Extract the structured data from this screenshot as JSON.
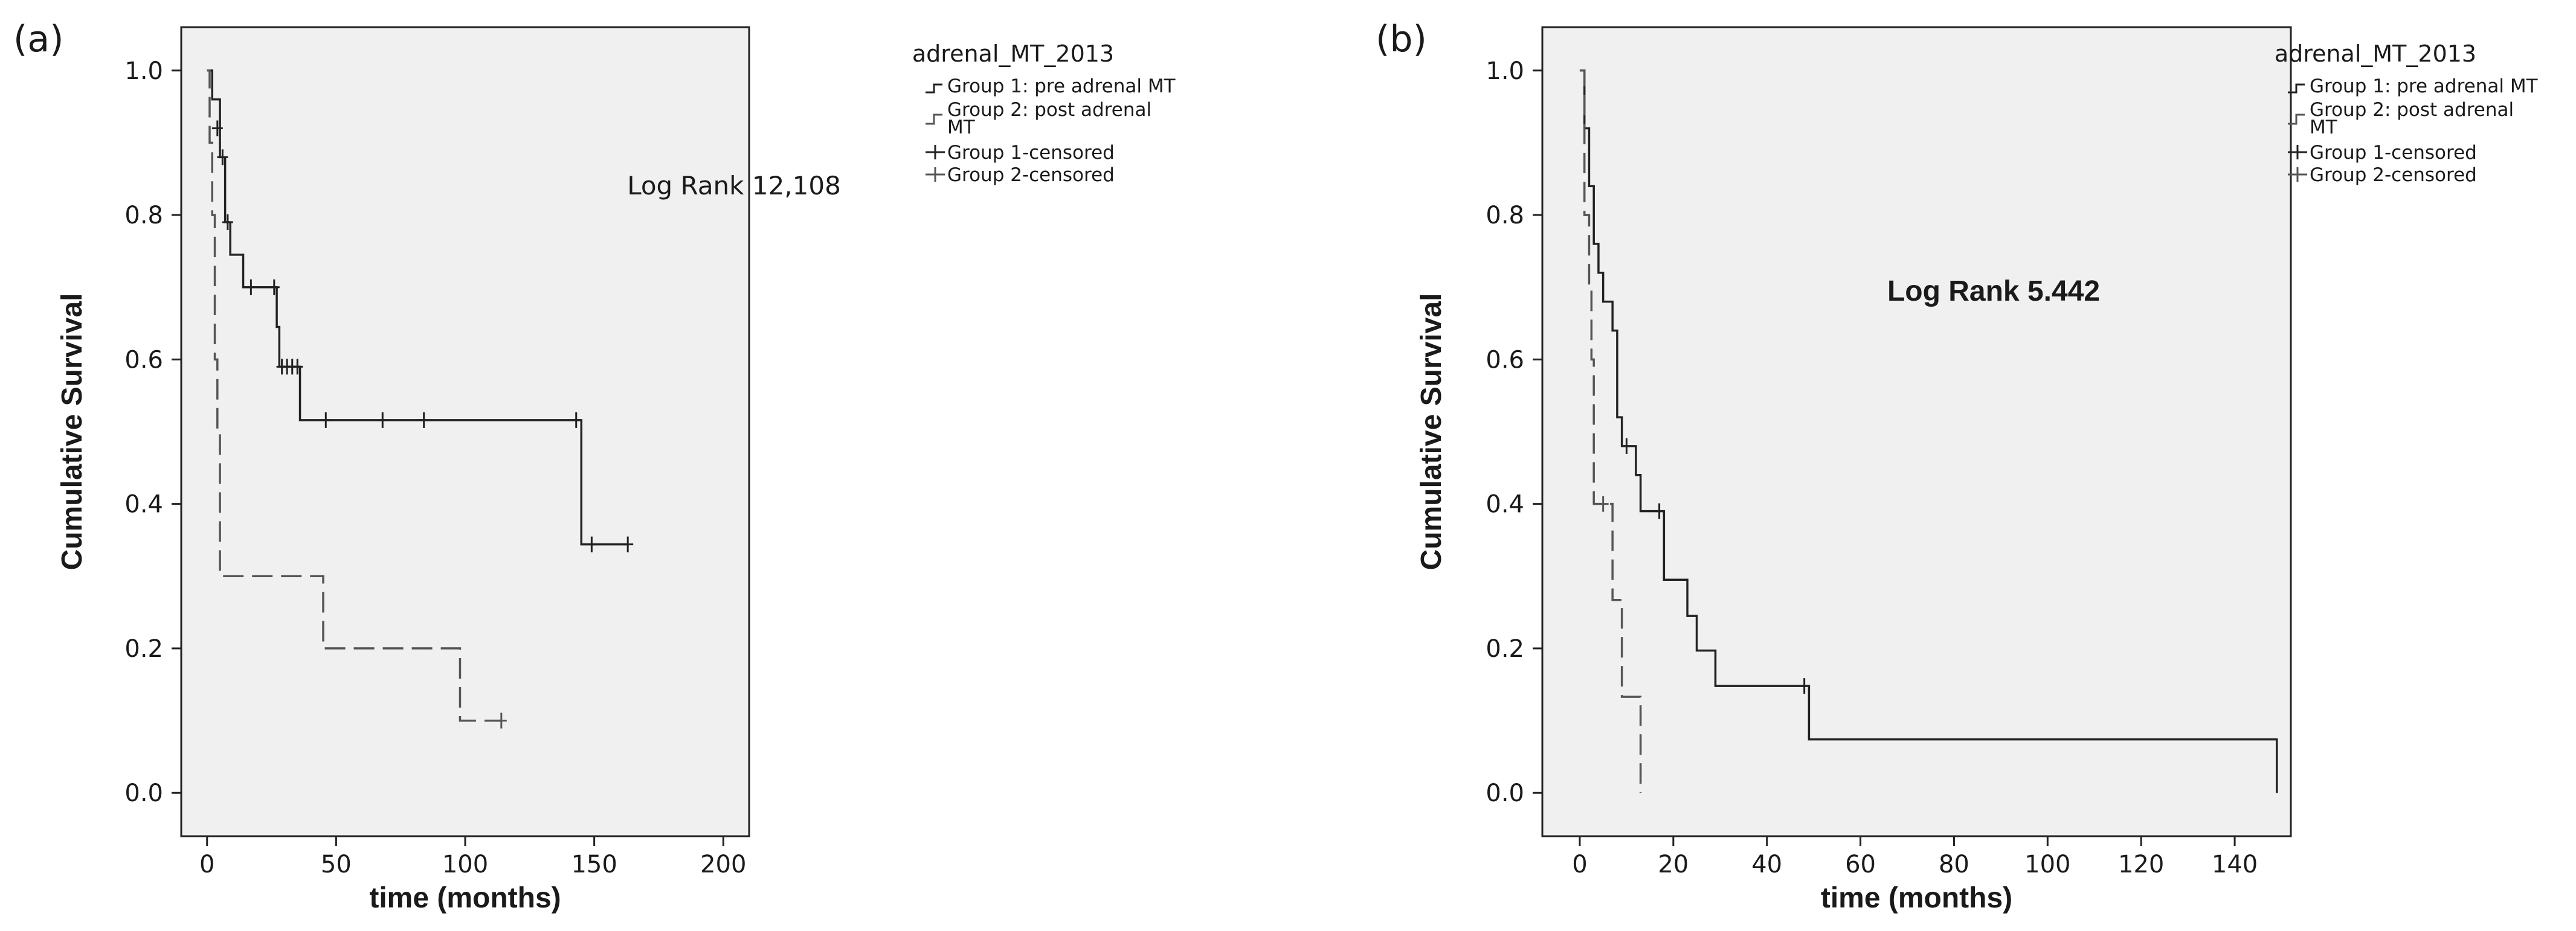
{
  "chart_data": [
    {
      "type": "line",
      "subtype": "kaplan-meier",
      "panel": "(a)",
      "xlabel": "time (months)",
      "ylabel": "Cumulative Survival",
      "xlim": [
        -10,
        210
      ],
      "ylim": [
        -0.06,
        1.06
      ],
      "xticks": [
        0,
        50,
        100,
        150,
        200
      ],
      "yticks": [
        0.0,
        0.2,
        0.4,
        0.6,
        0.8,
        1.0
      ],
      "legend_title": "adrenal_MT_2013",
      "legend_position": "outside-right",
      "legend": [
        "Group 1: pre adrenal MT",
        "Group 2: post adrenal MT",
        "Group 1-censored",
        "Group 2-censored"
      ],
      "annotation": "Log Rank 12,108",
      "series": [
        {
          "name": "Group 1: pre adrenal MT",
          "style": "solid",
          "steps": [
            [
              0,
              1.0
            ],
            [
              2,
              0.96
            ],
            [
              5,
              0.88
            ],
            [
              7,
              0.79
            ],
            [
              9,
              0.745
            ],
            [
              14,
              0.7
            ],
            [
              27,
              0.645
            ],
            [
              28,
              0.59
            ],
            [
              36,
              0.516
            ],
            [
              145,
              0.344
            ],
            [
              163,
              0.344
            ]
          ],
          "censored": [
            [
              4,
              0.92
            ],
            [
              6,
              0.88
            ],
            [
              8,
              0.79
            ],
            [
              17,
              0.7
            ],
            [
              26,
              0.7
            ],
            [
              29,
              0.59
            ],
            [
              31,
              0.59
            ],
            [
              33,
              0.59
            ],
            [
              35,
              0.59
            ],
            [
              46,
              0.516
            ],
            [
              68,
              0.516
            ],
            [
              84,
              0.516
            ],
            [
              143,
              0.516
            ],
            [
              149,
              0.344
            ],
            [
              163,
              0.344
            ]
          ]
        },
        {
          "name": "Group 2: post adrenal MT",
          "style": "dashed",
          "steps": [
            [
              0,
              1.0
            ],
            [
              1,
              0.9
            ],
            [
              2,
              0.8
            ],
            [
              3,
              0.6
            ],
            [
              4,
              0.5
            ],
            [
              5,
              0.3
            ],
            [
              45,
              0.2
            ],
            [
              98,
              0.1
            ],
            [
              114,
              0.1
            ]
          ],
          "censored": [
            [
              114,
              0.1
            ]
          ]
        }
      ]
    },
    {
      "type": "line",
      "subtype": "kaplan-meier",
      "panel": "(b)",
      "xlabel": "time (months)",
      "ylabel": "Cumulative Survival",
      "xlim": [
        -8,
        152
      ],
      "ylim": [
        -0.06,
        1.06
      ],
      "xticks": [
        0,
        20,
        40,
        60,
        80,
        100,
        120,
        140
      ],
      "yticks": [
        0.0,
        0.2,
        0.4,
        0.6,
        0.8,
        1.0
      ],
      "legend_title": "adrenal_MT_2013",
      "legend_position": "outside-right",
      "legend": [
        "Group 1: pre adrenal MT",
        "Group 2: post adrenal MT",
        "Group 1-censored",
        "Group 2-censored"
      ],
      "annotation": "Log Rank 5.442",
      "series": [
        {
          "name": "Group 1: pre adrenal MT",
          "style": "solid",
          "steps": [
            [
              0,
              1.0
            ],
            [
              1,
              0.92
            ],
            [
              2,
              0.84
            ],
            [
              3,
              0.76
            ],
            [
              4,
              0.72
            ],
            [
              5,
              0.68
            ],
            [
              7,
              0.64
            ],
            [
              8,
              0.52
            ],
            [
              9,
              0.48
            ],
            [
              12,
              0.44
            ],
            [
              13,
              0.39
            ],
            [
              18,
              0.295
            ],
            [
              23,
              0.245
            ],
            [
              25,
              0.197
            ],
            [
              29,
              0.148
            ],
            [
              49,
              0.074
            ],
            [
              149,
              0.0
            ]
          ],
          "censored": [
            [
              10,
              0.48
            ],
            [
              17,
              0.39
            ],
            [
              48,
              0.148
            ]
          ]
        },
        {
          "name": "Group 2: post adrenal MT",
          "style": "dashed",
          "steps": [
            [
              0,
              1.0
            ],
            [
              1,
              0.8
            ],
            [
              2,
              0.7
            ],
            [
              2.5,
              0.6
            ],
            [
              3,
              0.4
            ],
            [
              7,
              0.267
            ],
            [
              9,
              0.133
            ],
            [
              13,
              0.0
            ]
          ],
          "censored": [
            [
              5,
              0.4
            ]
          ]
        }
      ]
    }
  ]
}
